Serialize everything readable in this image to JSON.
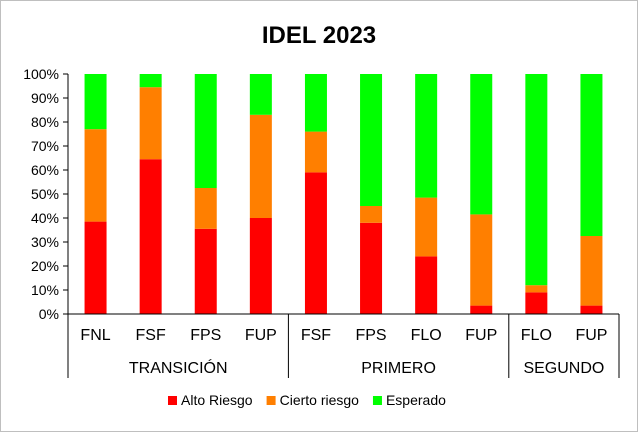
{
  "chart_data": {
    "type": "bar",
    "stacked": "percent",
    "title": "IDEL 2023",
    "y_ticks": [
      "0%",
      "10%",
      "20%",
      "30%",
      "40%",
      "50%",
      "60%",
      "70%",
      "80%",
      "90%",
      "100%"
    ],
    "ylim": [
      0,
      100
    ],
    "categories": [
      "FNL",
      "FSF",
      "FPS",
      "FUP",
      "FSF",
      "FPS",
      "FLO",
      "FUP",
      "FLO",
      "FUP"
    ],
    "groups": [
      {
        "label": "TRANSICIÓN",
        "count": 4
      },
      {
        "label": "PRIMERO",
        "count": 4
      },
      {
        "label": "SEGUNDO",
        "count": 2
      }
    ],
    "series": [
      {
        "name": "Alto Riesgo",
        "color": "#ff0000",
        "values": [
          38.5,
          64.5,
          35.5,
          40,
          59,
          38,
          24,
          3.5,
          9,
          3.5
        ]
      },
      {
        "name": "Cierto riesgo",
        "color": "#ff7f00",
        "values": [
          38.5,
          30,
          17,
          43,
          17,
          7,
          24.5,
          38,
          3,
          29
        ]
      },
      {
        "name": "Esperado",
        "color": "#00ff00",
        "values": [
          23,
          5.5,
          47.5,
          17,
          24,
          55,
          51.5,
          58.5,
          88,
          67.5
        ]
      }
    ],
    "legend_position": "bottom",
    "grid": false
  }
}
